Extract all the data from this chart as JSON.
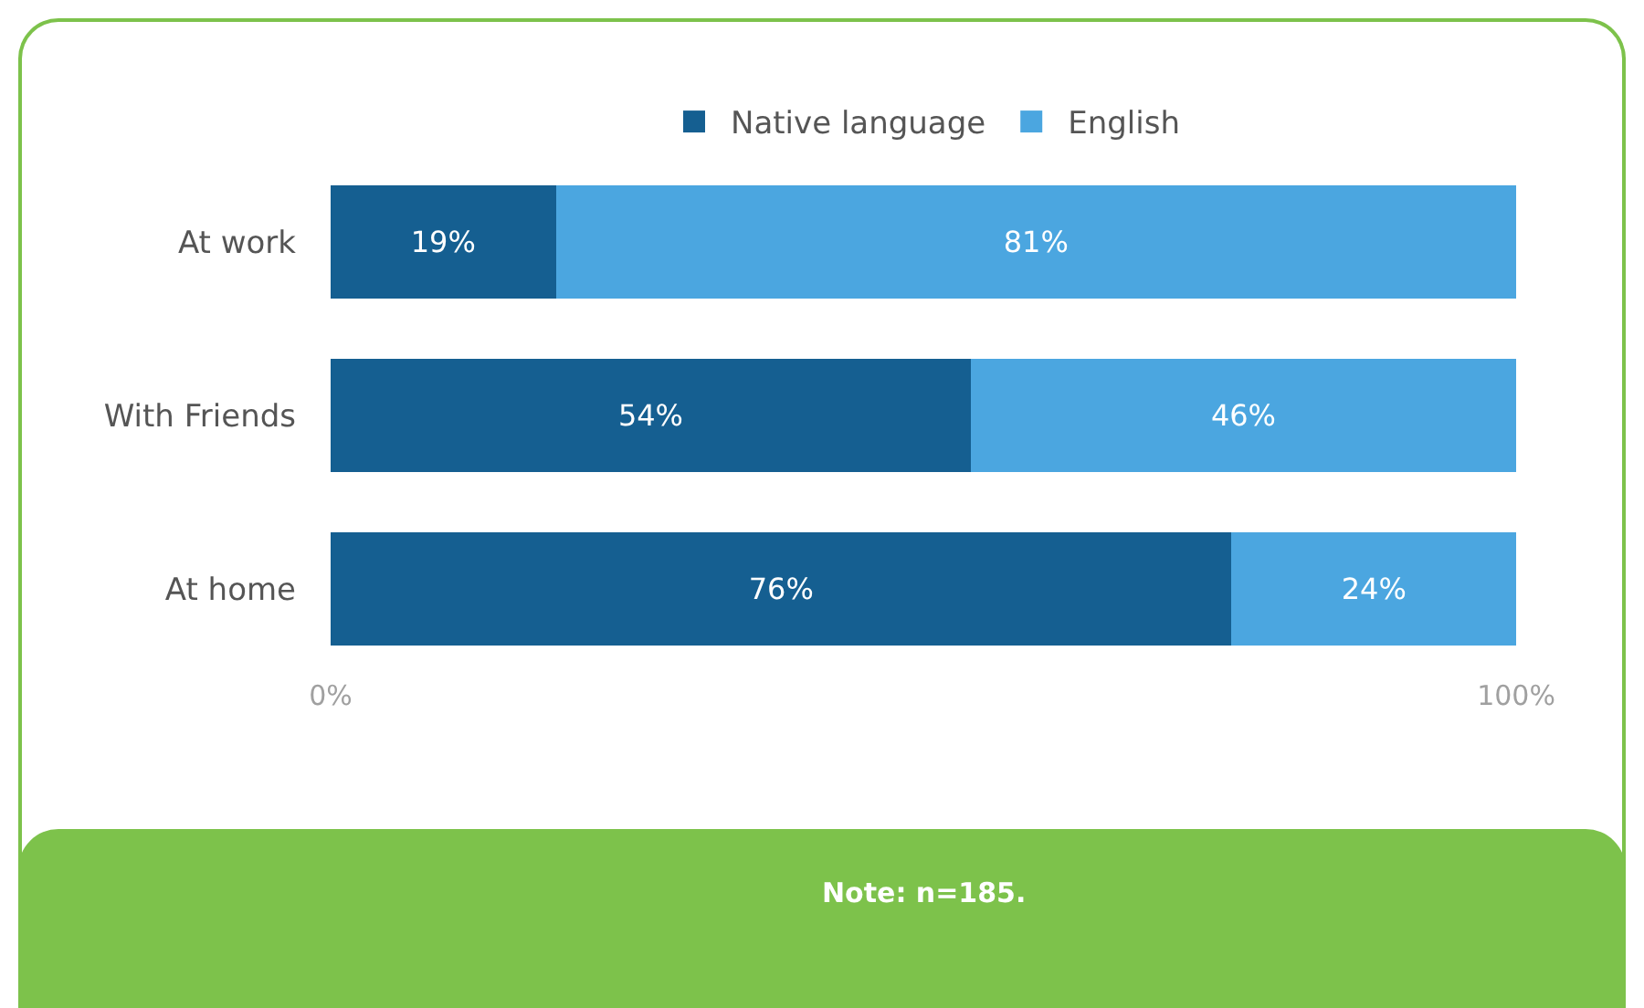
{
  "chart_data": {
    "type": "bar",
    "orientation": "horizontal",
    "stacked": true,
    "categories": [
      "At work",
      "With Friends",
      "At home"
    ],
    "series": [
      {
        "name": "Native language",
        "color": "#155f91",
        "values": [
          19,
          54,
          76
        ]
      },
      {
        "name": "English",
        "color": "#4ba6e0",
        "values": [
          81,
          46,
          24
        ]
      }
    ],
    "value_labels": [
      [
        "19%",
        "54%",
        "76%"
      ],
      [
        "81%",
        "46%",
        "24%"
      ]
    ],
    "xlim": [
      0,
      100
    ],
    "xticks": [
      {
        "value": 0,
        "label": "0%"
      },
      {
        "value": 100,
        "label": "100%"
      }
    ],
    "legend": "top",
    "annotations": [
      "Note: n=185."
    ]
  }
}
